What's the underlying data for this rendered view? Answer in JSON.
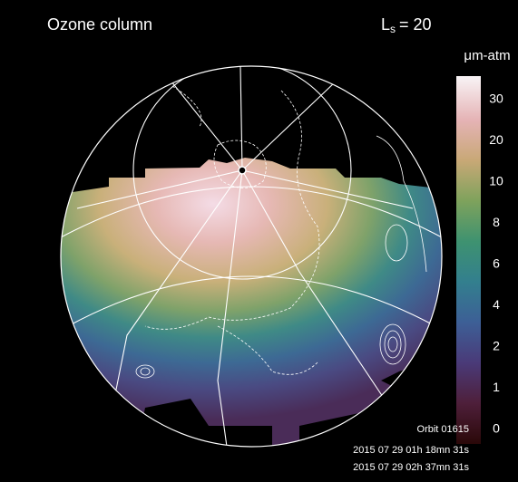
{
  "header": {
    "title": "Ozone column",
    "season": {
      "symbol": "L",
      "subscript": "s",
      "value": "= 20"
    }
  },
  "colorbar": {
    "unit": "μm-atm",
    "ticks": [
      0,
      1,
      2,
      4,
      6,
      8,
      10,
      20,
      30
    ]
  },
  "footer": {
    "orbit": "Orbit 01615",
    "times": [
      "2015 07 29 01h 18mn 31s",
      "2015 07 29 02h 37mn 31s"
    ]
  }
}
